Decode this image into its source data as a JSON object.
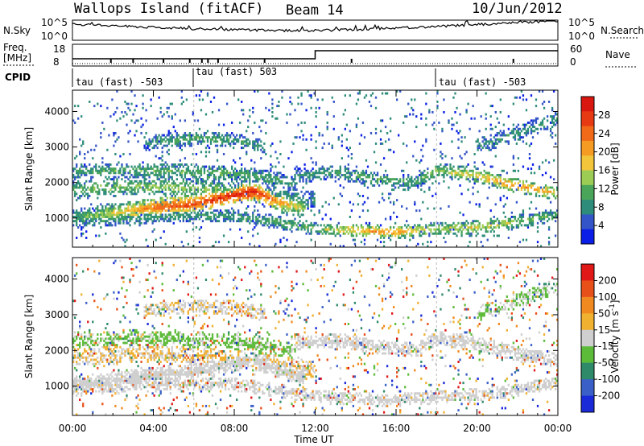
{
  "header": {
    "station": "Wallops Island (fitACF)",
    "beam": "Beam 14",
    "date": "10/Jun/2012"
  },
  "status_panel": {
    "nsky_label": "N.Sky",
    "nsky_ticks": [
      "10^5",
      "10^0"
    ],
    "nsearch_label": "N.Search",
    "nsearch_ticks": [
      "10^5",
      "10^0"
    ],
    "freq_label_1": "Freq.",
    "freq_label_2": "[MHz]",
    "freq_ticks": [
      "18",
      "8"
    ],
    "nave_label": "Nave",
    "nave_ticks": [
      "60",
      "0"
    ],
    "cpid_label": "CPID",
    "cpid_segments": [
      {
        "start_hour": 0,
        "text": "tau (fast) -503"
      },
      {
        "start_hour": 6,
        "text": "tau (fast) 503"
      },
      {
        "start_hour": 18,
        "text": "tau (fast) -503"
      }
    ]
  },
  "chart_data": [
    {
      "type": "heatmap",
      "ylabel": "Slant Range [km]",
      "xlabel": "Time UT",
      "x_ticks": [
        "00:00",
        "04:00",
        "08:00",
        "12:00",
        "16:00",
        "20:00",
        "00:00"
      ],
      "y_ticks": [
        "1000",
        "2000",
        "3000",
        "4000"
      ],
      "xlim": [
        0,
        24
      ],
      "ylim": [
        180,
        4600
      ],
      "colorbar": {
        "label": "Power [dB]",
        "ticks": [
          "4",
          "8",
          "12",
          "16",
          "20",
          "24",
          "28"
        ],
        "range": [
          0,
          32
        ],
        "colors": [
          "#0a1ee8",
          "#3355c8",
          "#2e8d7a",
          "#4aa55a",
          "#9dcc55",
          "#f2c53a",
          "#f59a22",
          "#f06a1a",
          "#e83a12",
          "#d81810"
        ]
      },
      "bands": [
        {
          "name": "main",
          "t0": 0,
          "t1": 11.5,
          "r": [
            [
              0,
              1000
            ],
            [
              2,
              1150
            ],
            [
              4,
              1300
            ],
            [
              6,
              1400
            ],
            [
              8,
              1650
            ],
            [
              9,
              1750
            ],
            [
              10,
              1500
            ],
            [
              11.5,
              1250
            ]
          ],
          "width": 260,
          "dB": [
            [
              0,
              10
            ],
            [
              2,
              16
            ],
            [
              4,
              24
            ],
            [
              6,
              27
            ],
            [
              8,
              29
            ],
            [
              9,
              30
            ],
            [
              10,
              22
            ],
            [
              11.5,
              14
            ]
          ],
          "density": 0.85
        },
        {
          "name": "lower",
          "t0": 0,
          "t1": 24,
          "r": [
            [
              0,
              900
            ],
            [
              3,
              1000
            ],
            [
              6,
              1100
            ],
            [
              8,
              1050
            ],
            [
              10,
              900
            ],
            [
              12,
              700
            ],
            [
              14,
              650
            ],
            [
              16,
              600
            ],
            [
              18,
              700
            ],
            [
              20,
              750
            ],
            [
              22,
              900
            ],
            [
              24,
              1100
            ]
          ],
          "width": 180,
          "dB": [
            [
              0,
              8
            ],
            [
              4,
              10
            ],
            [
              8,
              10
            ],
            [
              12,
              12
            ],
            [
              14,
              20
            ],
            [
              16,
              22
            ],
            [
              18,
              14
            ],
            [
              20,
              18
            ],
            [
              24,
              10
            ]
          ],
          "density": 0.55
        },
        {
          "name": "upper",
          "t0": 0,
          "t1": 11,
          "r": [
            [
              0,
              2300
            ],
            [
              3,
              2350
            ],
            [
              6,
              2300
            ],
            [
              8,
              2250
            ],
            [
              10,
              2100
            ],
            [
              11,
              1950
            ]
          ],
          "width": 220,
          "dB": [
            [
              0,
              10
            ],
            [
              4,
              12
            ],
            [
              8,
              12
            ],
            [
              11,
              9
            ]
          ],
          "density": 0.5
        },
        {
          "name": "mid",
          "t0": 0,
          "t1": 12,
          "r": [
            [
              0,
              1800
            ],
            [
              3,
              1900
            ],
            [
              6,
              1850
            ],
            [
              9,
              1700
            ],
            [
              12,
              1500
            ]
          ],
          "width": 250,
          "dB": [
            [
              0,
              12
            ],
            [
              5,
              14
            ],
            [
              9,
              12
            ],
            [
              12,
              8
            ]
          ],
          "density": 0.45
        },
        {
          "name": "top",
          "t0": 3.5,
          "t1": 9.5,
          "r": [
            [
              3.5,
              3100
            ],
            [
              6,
              3250
            ],
            [
              8,
              3200
            ],
            [
              9.5,
              3000
            ]
          ],
          "width": 200,
          "dB": [
            [
              3.5,
              8
            ],
            [
              6,
              12
            ],
            [
              9.5,
              8
            ]
          ],
          "density": 0.5
        },
        {
          "name": "late",
          "t0": 11,
          "t1": 24,
          "r": [
            [
              11,
              2200
            ],
            [
              13,
              2300
            ],
            [
              15,
              2100
            ],
            [
              17,
              2000
            ],
            [
              18,
              2350
            ],
            [
              20,
              2200
            ],
            [
              22,
              1900
            ],
            [
              24,
              1700
            ]
          ],
          "width": 200,
          "dB": [
            [
              11,
              8
            ],
            [
              14,
              12
            ],
            [
              17,
              10
            ],
            [
              19,
              16
            ],
            [
              22,
              22
            ],
            [
              24,
              18
            ]
          ],
          "density": 0.5
        },
        {
          "name": "evening",
          "t0": 20,
          "t1": 24,
          "r": [
            [
              20,
              3000
            ],
            [
              22,
              3400
            ],
            [
              24,
              3800
            ]
          ],
          "width": 220,
          "dB": [
            [
              20,
              8
            ],
            [
              24,
              10
            ]
          ],
          "density": 0.35
        }
      ],
      "noise_density": 0.05
    },
    {
      "type": "heatmap",
      "ylabel": "Slant Range [km]",
      "xlabel": "Time UT",
      "x_ticks": [
        "00:00",
        "04:00",
        "08:00",
        "12:00",
        "16:00",
        "20:00",
        "00:00"
      ],
      "y_ticks": [
        "1000",
        "2000",
        "3000",
        "4000"
      ],
      "xlim": [
        0,
        24
      ],
      "ylim": [
        180,
        4600
      ],
      "colorbar": {
        "label": "Velocity [m s^-1]",
        "ticks": [
          "200",
          "100",
          "50",
          "15",
          "-15",
          "-50",
          "-100",
          "-200"
        ],
        "range": [
          -250,
          250
        ],
        "colors": [
          "#1a2ad8",
          "#3a60c8",
          "#2f8a6a",
          "#5dbb3a",
          "#cfcfcf",
          "#f0b030",
          "#f08a20",
          "#e8501a",
          "#e01818"
        ]
      },
      "bands": [
        {
          "name": "main",
          "t0": 0,
          "t1": 11.5,
          "r": [
            [
              0,
              1000
            ],
            [
              2,
              1150
            ],
            [
              4,
              1300
            ],
            [
              6,
              1400
            ],
            [
              8,
              1650
            ],
            [
              9,
              1750
            ],
            [
              10,
              1500
            ],
            [
              11.5,
              1250
            ]
          ],
          "width": 260,
          "vel": 0,
          "density": 0.85
        },
        {
          "name": "lower",
          "t0": 0,
          "t1": 24,
          "r": [
            [
              0,
              900
            ],
            [
              3,
              1000
            ],
            [
              6,
              1100
            ],
            [
              8,
              1050
            ],
            [
              10,
              900
            ],
            [
              12,
              700
            ],
            [
              14,
              650
            ],
            [
              16,
              600
            ],
            [
              18,
              700
            ],
            [
              20,
              750
            ],
            [
              22,
              900
            ],
            [
              24,
              1100
            ]
          ],
          "width": 180,
          "vel": 0,
          "density": 0.55
        },
        {
          "name": "upper",
          "t0": 0,
          "t1": 11,
          "r": [
            [
              0,
              2300
            ],
            [
              3,
              2350
            ],
            [
              6,
              2300
            ],
            [
              8,
              2250
            ],
            [
              10,
              2100
            ],
            [
              11,
              1950
            ]
          ],
          "width": 220,
          "vel": -40,
          "density": 0.5
        },
        {
          "name": "mid",
          "t0": 0,
          "t1": 12,
          "r": [
            [
              0,
              1800
            ],
            [
              3,
              1900
            ],
            [
              6,
              1850
            ],
            [
              9,
              1700
            ],
            [
              12,
              1500
            ]
          ],
          "width": 250,
          "vel": 30,
          "density": 0.45
        },
        {
          "name": "top",
          "t0": 3.5,
          "t1": 9.5,
          "r": [
            [
              3.5,
              3100
            ],
            [
              6,
              3250
            ],
            [
              8,
              3200
            ],
            [
              9.5,
              3000
            ]
          ],
          "width": 200,
          "vel": 20,
          "density": 0.5
        },
        {
          "name": "late",
          "t0": 11,
          "t1": 24,
          "r": [
            [
              11,
              2200
            ],
            [
              13,
              2300
            ],
            [
              15,
              2100
            ],
            [
              17,
              2000
            ],
            [
              18,
              2350
            ],
            [
              20,
              2200
            ],
            [
              22,
              1900
            ],
            [
              24,
              1700
            ]
          ],
          "width": 200,
          "vel": 0,
          "density": 0.5
        },
        {
          "name": "evening",
          "t0": 20,
          "t1": 24,
          "r": [
            [
              20,
              3000
            ],
            [
              22,
              3400
            ],
            [
              24,
              3800
            ]
          ],
          "width": 220,
          "vel": -30,
          "density": 0.35
        }
      ],
      "noise_density": 0.05
    }
  ]
}
